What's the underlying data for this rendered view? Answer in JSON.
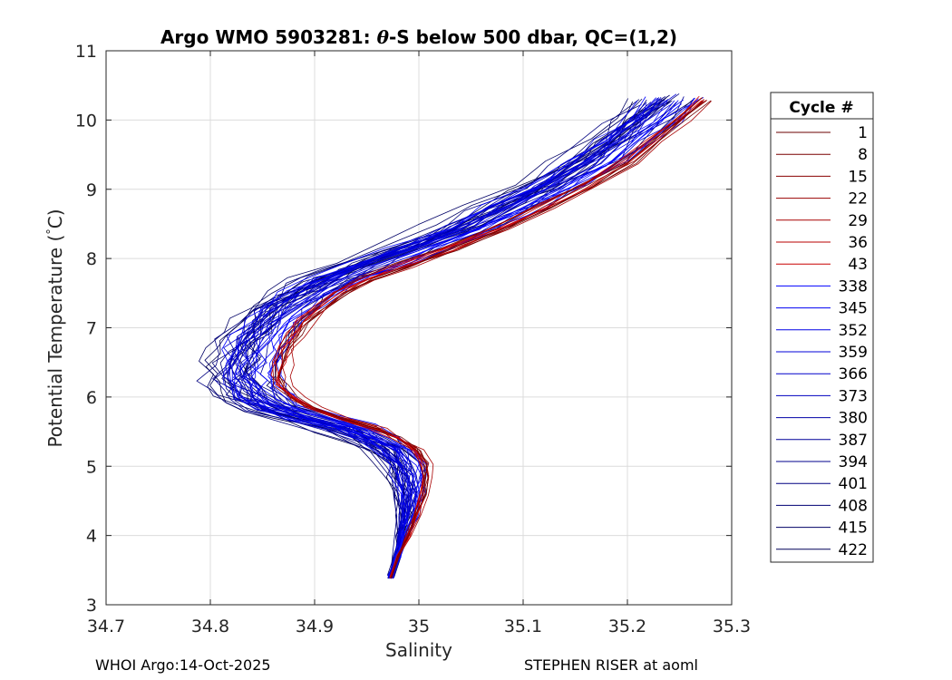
{
  "chart_data": {
    "type": "line",
    "title": "Argo WMO 5903281: θ-S below 500 dbar,  QC=(1,2)",
    "title_parts": {
      "prefix": "Argo WMO 5903281: ",
      "symbol": "θ",
      "suffix": "-S below 500 dbar,  QC=(1,2)"
    },
    "xlabel": "Salinity",
    "ylabel": "Potential Temperature ( °C)",
    "ylabel_parts": {
      "main": "Potential Temperature (",
      "degree": "°",
      "unit": "C)"
    },
    "xlim": [
      34.7,
      35.3
    ],
    "ylim": [
      3,
      11
    ],
    "xticks": [
      34.7,
      34.8,
      34.9,
      35.0,
      35.1,
      35.2,
      35.3
    ],
    "xtick_labels": [
      "34.7",
      "34.8",
      "34.9",
      "35",
      "35.1",
      "35.2",
      "35.3"
    ],
    "yticks": [
      3,
      4,
      5,
      6,
      7,
      8,
      9,
      10,
      11
    ],
    "ytick_labels": [
      "3",
      "4",
      "5",
      "6",
      "7",
      "8",
      "9",
      "10",
      "11"
    ],
    "grid": true,
    "legend": {
      "title": "Cycle #",
      "placement": "outside-right",
      "entries": [
        {
          "label": "1",
          "color": "#6b0000"
        },
        {
          "label": "8",
          "color": "#7a0000"
        },
        {
          "label": "15",
          "color": "#8a0000"
        },
        {
          "label": "22",
          "color": "#990000"
        },
        {
          "label": "29",
          "color": "#a80000"
        },
        {
          "label": "36",
          "color": "#b80000"
        },
        {
          "label": "43",
          "color": "#c80000"
        },
        {
          "label": "338",
          "color": "#0000ff"
        },
        {
          "label": "345",
          "color": "#0000f2"
        },
        {
          "label": "352",
          "color": "#0000e6"
        },
        {
          "label": "359",
          "color": "#0000d9"
        },
        {
          "label": "366",
          "color": "#0000cc"
        },
        {
          "label": "373",
          "color": "#0000bf"
        },
        {
          "label": "380",
          "color": "#0000a6"
        },
        {
          "label": "387",
          "color": "#000099"
        },
        {
          "label": "394",
          "color": "#00008c"
        },
        {
          "label": "401",
          "color": "#000080"
        },
        {
          "label": "408",
          "color": "#000073"
        },
        {
          "label": "415",
          "color": "#000066"
        },
        {
          "label": "422",
          "color": "#000059"
        }
      ]
    },
    "mean_profile": {
      "s": [
        34.973,
        34.98,
        34.988,
        34.995,
        35.0,
        35.001,
        34.999,
        34.99,
        34.972,
        34.95,
        34.915,
        34.885,
        34.868,
        34.859,
        34.855,
        34.857,
        34.862,
        34.87,
        34.88,
        34.895,
        34.915,
        34.94,
        34.975,
        35.02,
        35.07,
        35.11,
        35.15,
        35.19,
        35.215,
        35.24,
        35.262
      ],
      "t": [
        3.4,
        3.7,
        4.0,
        4.3,
        4.6,
        4.85,
        5.05,
        5.25,
        5.4,
        5.55,
        5.7,
        5.85,
        6.0,
        6.15,
        6.3,
        6.5,
        6.7,
        6.9,
        7.1,
        7.3,
        7.5,
        7.7,
        7.9,
        8.15,
        8.45,
        8.75,
        9.05,
        9.4,
        9.7,
        10.0,
        10.3
      ]
    },
    "profile_groups": [
      {
        "name": "cycles 1-43 (red)",
        "count": 12,
        "colors": [
          "#6b0000",
          "#8a0000",
          "#a80000",
          "#c80000",
          "#d40000"
        ],
        "s_offset": [
          0.005,
          0.022
        ],
        "s_jitter": 0.006
      },
      {
        "name": "cycles 338-373 (blue)",
        "count": 26,
        "colors": [
          "#0000ff",
          "#0000e6",
          "#0000cc",
          "#1a1aff",
          "#0000d9"
        ],
        "s_offset": [
          -0.045,
          0.005
        ],
        "s_jitter": 0.014
      },
      {
        "name": "cycles 380-422 (navy)",
        "count": 24,
        "colors": [
          "#000080",
          "#000073",
          "#000066",
          "#000099",
          "#00004d"
        ],
        "s_offset": [
          -0.06,
          0.012
        ],
        "s_jitter": 0.016
      }
    ]
  },
  "footer": {
    "left": "WHOI Argo:14-Oct-2025",
    "right": "STEPHEN RISER at aoml"
  }
}
